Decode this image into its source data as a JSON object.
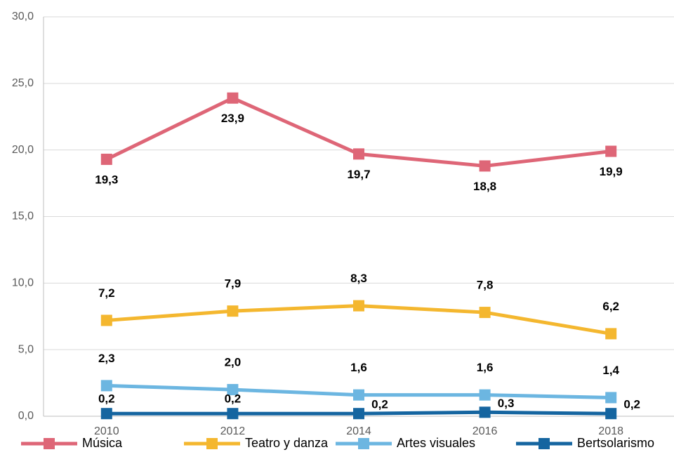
{
  "chart_data": {
    "type": "line",
    "categories": [
      "2010",
      "2012",
      "2014",
      "2016",
      "2018"
    ],
    "series": [
      {
        "name": "Música",
        "color": "#de6677",
        "values": [
          19.3,
          23.9,
          19.7,
          18.8,
          19.9
        ],
        "value_labels": [
          "19,3",
          "23,9",
          "19,7",
          "18,8",
          "19,9"
        ]
      },
      {
        "name": "Teatro y danza",
        "color": "#f4b72f",
        "values": [
          7.2,
          7.9,
          8.3,
          7.8,
          6.2
        ],
        "value_labels": [
          "7,2",
          "7,9",
          "8,3",
          "7,8",
          "6,2"
        ]
      },
      {
        "name": "Artes visuales",
        "color": "#6cb6e1",
        "values": [
          2.3,
          2.0,
          1.6,
          1.6,
          1.4
        ],
        "value_labels": [
          "2,3",
          "2,0",
          "1,6",
          "1,6",
          "1,4"
        ]
      },
      {
        "name": "Bertsolarismo",
        "color": "#1565a0",
        "values": [
          0.2,
          0.2,
          0.2,
          0.3,
          0.2
        ],
        "value_labels": [
          "0,2",
          "0,2",
          "0,2",
          "0,3",
          "0,2"
        ]
      }
    ],
    "ylim": [
      0,
      30
    ],
    "yticks": [
      {
        "value": 0,
        "label": "0,0"
      },
      {
        "value": 5,
        "label": "5,0"
      },
      {
        "value": 10,
        "label": "10,0"
      },
      {
        "value": 15,
        "label": "15,0"
      },
      {
        "value": 20,
        "label": "20,0"
      },
      {
        "value": 25,
        "label": "25,0"
      },
      {
        "value": 30,
        "label": "30,0"
      }
    ],
    "grid": true,
    "legend": "bottom"
  }
}
